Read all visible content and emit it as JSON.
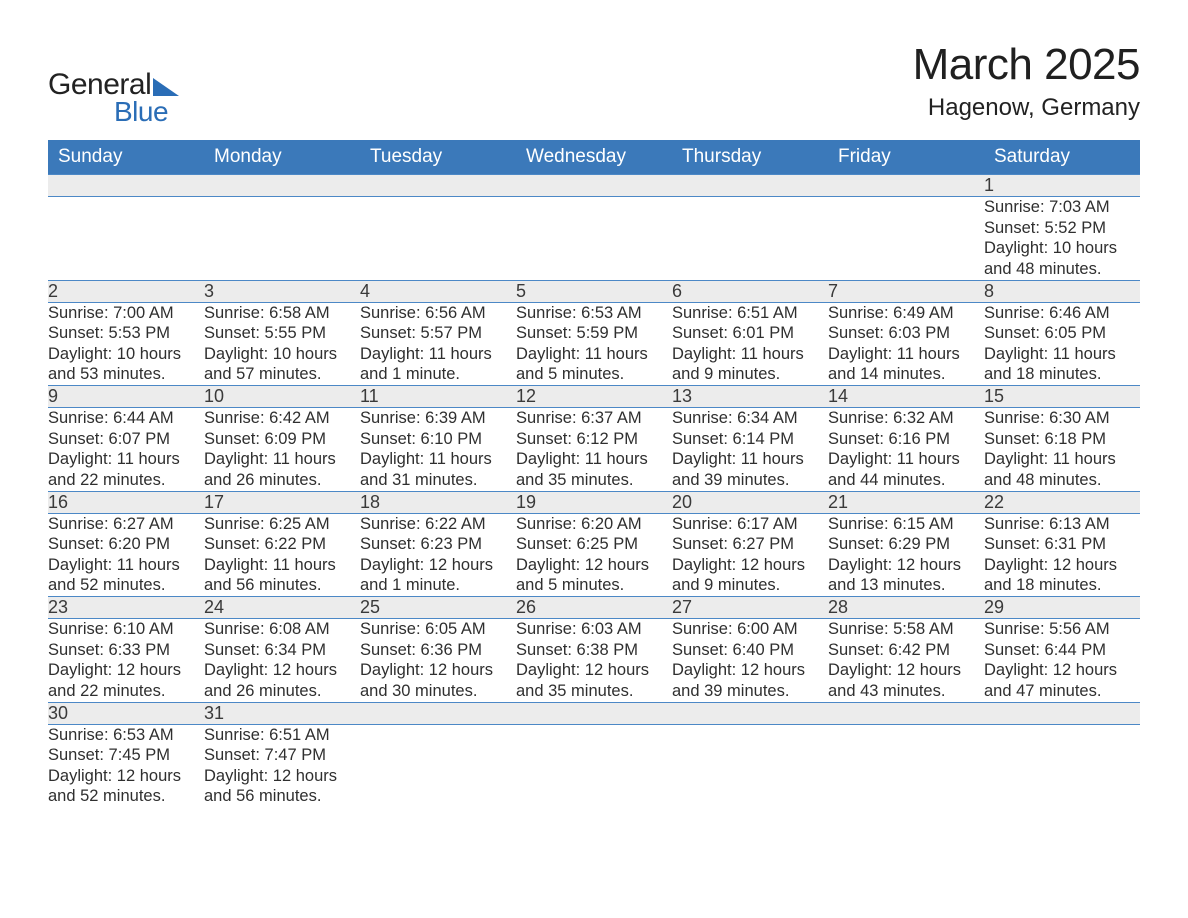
{
  "brand": {
    "word1": "General",
    "word2": "Blue"
  },
  "title": "March 2025",
  "location": "Hagenow, Germany",
  "columns": [
    "Sunday",
    "Monday",
    "Tuesday",
    "Wednesday",
    "Thursday",
    "Friday",
    "Saturday"
  ],
  "colors": {
    "header_bg": "#3b79ba",
    "header_text": "#ffffff",
    "row_divider": "#4c88c6",
    "daynum_bg": "#ececec",
    "text": "#2f2f2f",
    "logo_accent": "#2a6db6"
  },
  "typography": {
    "title_fontsize": 44,
    "location_fontsize": 24,
    "header_fontsize": 19,
    "daynum_fontsize": 18,
    "body_fontsize": 16.5
  },
  "weeks": [
    [
      null,
      null,
      null,
      null,
      null,
      null,
      {
        "d": "1",
        "sunrise": "Sunrise: 7:03 AM",
        "sunset": "Sunset: 5:52 PM",
        "day1": "Daylight: 10 hours",
        "day2": "and 48 minutes."
      }
    ],
    [
      {
        "d": "2",
        "sunrise": "Sunrise: 7:00 AM",
        "sunset": "Sunset: 5:53 PM",
        "day1": "Daylight: 10 hours",
        "day2": "and 53 minutes."
      },
      {
        "d": "3",
        "sunrise": "Sunrise: 6:58 AM",
        "sunset": "Sunset: 5:55 PM",
        "day1": "Daylight: 10 hours",
        "day2": "and 57 minutes."
      },
      {
        "d": "4",
        "sunrise": "Sunrise: 6:56 AM",
        "sunset": "Sunset: 5:57 PM",
        "day1": "Daylight: 11 hours",
        "day2": "and 1 minute."
      },
      {
        "d": "5",
        "sunrise": "Sunrise: 6:53 AM",
        "sunset": "Sunset: 5:59 PM",
        "day1": "Daylight: 11 hours",
        "day2": "and 5 minutes."
      },
      {
        "d": "6",
        "sunrise": "Sunrise: 6:51 AM",
        "sunset": "Sunset: 6:01 PM",
        "day1": "Daylight: 11 hours",
        "day2": "and 9 minutes."
      },
      {
        "d": "7",
        "sunrise": "Sunrise: 6:49 AM",
        "sunset": "Sunset: 6:03 PM",
        "day1": "Daylight: 11 hours",
        "day2": "and 14 minutes."
      },
      {
        "d": "8",
        "sunrise": "Sunrise: 6:46 AM",
        "sunset": "Sunset: 6:05 PM",
        "day1": "Daylight: 11 hours",
        "day2": "and 18 minutes."
      }
    ],
    [
      {
        "d": "9",
        "sunrise": "Sunrise: 6:44 AM",
        "sunset": "Sunset: 6:07 PM",
        "day1": "Daylight: 11 hours",
        "day2": "and 22 minutes."
      },
      {
        "d": "10",
        "sunrise": "Sunrise: 6:42 AM",
        "sunset": "Sunset: 6:09 PM",
        "day1": "Daylight: 11 hours",
        "day2": "and 26 minutes."
      },
      {
        "d": "11",
        "sunrise": "Sunrise: 6:39 AM",
        "sunset": "Sunset: 6:10 PM",
        "day1": "Daylight: 11 hours",
        "day2": "and 31 minutes."
      },
      {
        "d": "12",
        "sunrise": "Sunrise: 6:37 AM",
        "sunset": "Sunset: 6:12 PM",
        "day1": "Daylight: 11 hours",
        "day2": "and 35 minutes."
      },
      {
        "d": "13",
        "sunrise": "Sunrise: 6:34 AM",
        "sunset": "Sunset: 6:14 PM",
        "day1": "Daylight: 11 hours",
        "day2": "and 39 minutes."
      },
      {
        "d": "14",
        "sunrise": "Sunrise: 6:32 AM",
        "sunset": "Sunset: 6:16 PM",
        "day1": "Daylight: 11 hours",
        "day2": "and 44 minutes."
      },
      {
        "d": "15",
        "sunrise": "Sunrise: 6:30 AM",
        "sunset": "Sunset: 6:18 PM",
        "day1": "Daylight: 11 hours",
        "day2": "and 48 minutes."
      }
    ],
    [
      {
        "d": "16",
        "sunrise": "Sunrise: 6:27 AM",
        "sunset": "Sunset: 6:20 PM",
        "day1": "Daylight: 11 hours",
        "day2": "and 52 minutes."
      },
      {
        "d": "17",
        "sunrise": "Sunrise: 6:25 AM",
        "sunset": "Sunset: 6:22 PM",
        "day1": "Daylight: 11 hours",
        "day2": "and 56 minutes."
      },
      {
        "d": "18",
        "sunrise": "Sunrise: 6:22 AM",
        "sunset": "Sunset: 6:23 PM",
        "day1": "Daylight: 12 hours",
        "day2": "and 1 minute."
      },
      {
        "d": "19",
        "sunrise": "Sunrise: 6:20 AM",
        "sunset": "Sunset: 6:25 PM",
        "day1": "Daylight: 12 hours",
        "day2": "and 5 minutes."
      },
      {
        "d": "20",
        "sunrise": "Sunrise: 6:17 AM",
        "sunset": "Sunset: 6:27 PM",
        "day1": "Daylight: 12 hours",
        "day2": "and 9 minutes."
      },
      {
        "d": "21",
        "sunrise": "Sunrise: 6:15 AM",
        "sunset": "Sunset: 6:29 PM",
        "day1": "Daylight: 12 hours",
        "day2": "and 13 minutes."
      },
      {
        "d": "22",
        "sunrise": "Sunrise: 6:13 AM",
        "sunset": "Sunset: 6:31 PM",
        "day1": "Daylight: 12 hours",
        "day2": "and 18 minutes."
      }
    ],
    [
      {
        "d": "23",
        "sunrise": "Sunrise: 6:10 AM",
        "sunset": "Sunset: 6:33 PM",
        "day1": "Daylight: 12 hours",
        "day2": "and 22 minutes."
      },
      {
        "d": "24",
        "sunrise": "Sunrise: 6:08 AM",
        "sunset": "Sunset: 6:34 PM",
        "day1": "Daylight: 12 hours",
        "day2": "and 26 minutes."
      },
      {
        "d": "25",
        "sunrise": "Sunrise: 6:05 AM",
        "sunset": "Sunset: 6:36 PM",
        "day1": "Daylight: 12 hours",
        "day2": "and 30 minutes."
      },
      {
        "d": "26",
        "sunrise": "Sunrise: 6:03 AM",
        "sunset": "Sunset: 6:38 PM",
        "day1": "Daylight: 12 hours",
        "day2": "and 35 minutes."
      },
      {
        "d": "27",
        "sunrise": "Sunrise: 6:00 AM",
        "sunset": "Sunset: 6:40 PM",
        "day1": "Daylight: 12 hours",
        "day2": "and 39 minutes."
      },
      {
        "d": "28",
        "sunrise": "Sunrise: 5:58 AM",
        "sunset": "Sunset: 6:42 PM",
        "day1": "Daylight: 12 hours",
        "day2": "and 43 minutes."
      },
      {
        "d": "29",
        "sunrise": "Sunrise: 5:56 AM",
        "sunset": "Sunset: 6:44 PM",
        "day1": "Daylight: 12 hours",
        "day2": "and 47 minutes."
      }
    ],
    [
      {
        "d": "30",
        "sunrise": "Sunrise: 6:53 AM",
        "sunset": "Sunset: 7:45 PM",
        "day1": "Daylight: 12 hours",
        "day2": "and 52 minutes."
      },
      {
        "d": "31",
        "sunrise": "Sunrise: 6:51 AM",
        "sunset": "Sunset: 7:47 PM",
        "day1": "Daylight: 12 hours",
        "day2": "and 56 minutes."
      },
      null,
      null,
      null,
      null,
      null
    ]
  ]
}
